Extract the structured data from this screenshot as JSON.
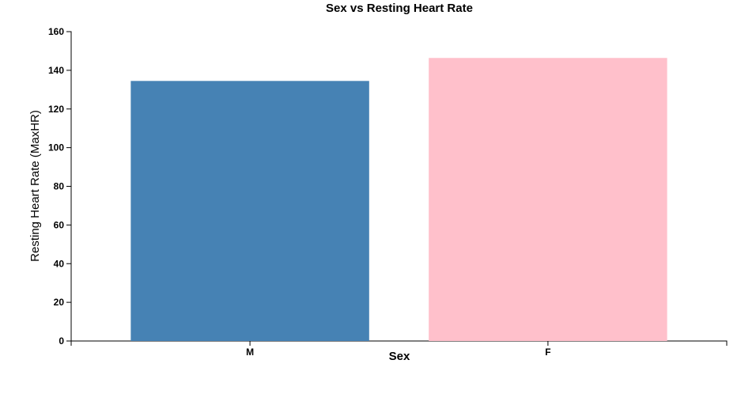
{
  "chart_data": {
    "type": "bar",
    "title": "Sex vs Resting Heart Rate",
    "xlabel": "Sex",
    "ylabel": "Resting Heart Rate (MaxHR)",
    "categories": [
      "M",
      "F"
    ],
    "values": [
      134.5,
      146.4
    ],
    "colors": [
      "#4682b4",
      "#ffc0cb"
    ],
    "ylim": [
      0,
      160
    ],
    "yticks": [
      0,
      20,
      40,
      60,
      80,
      100,
      120,
      140,
      160
    ],
    "grid": false,
    "legend": "none"
  }
}
